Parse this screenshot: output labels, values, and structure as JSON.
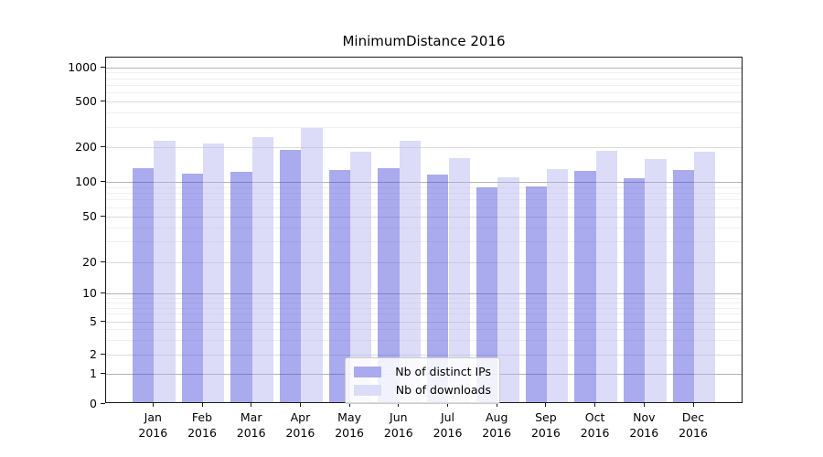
{
  "chart_data": {
    "type": "bar",
    "title": "MinimumDistance 2016",
    "categories": [
      "Jan 2016",
      "Feb 2016",
      "Mar 2016",
      "Apr 2016",
      "May 2016",
      "Jun 2016",
      "Jul 2016",
      "Aug 2016",
      "Sep 2016",
      "Oct 2016",
      "Nov 2016",
      "Dec 2016"
    ],
    "x_months": [
      "Jan",
      "Feb",
      "Mar",
      "Apr",
      "May",
      "Jun",
      "Jul",
      "Aug",
      "Sep",
      "Oct",
      "Nov",
      "Dec"
    ],
    "x_year": "2016",
    "series": [
      {
        "name": "Nb of distinct IPs",
        "color": "#aaaaee",
        "values": [
          128,
          115,
          119,
          185,
          124,
          129,
          112,
          87,
          88,
          121,
          104,
          123
        ]
      },
      {
        "name": "Nb of downloads",
        "color": "#dcdcf8",
        "values": [
          221,
          210,
          240,
          287,
          177,
          221,
          158,
          106,
          125,
          182,
          154,
          178
        ]
      }
    ],
    "y_scale": "symlog",
    "y_ticks": [
      0,
      1,
      2,
      5,
      10,
      20,
      50,
      100,
      200,
      500,
      1000
    ],
    "ylim": [
      0,
      1200
    ],
    "xlabel": "",
    "ylabel": "",
    "grid": true,
    "legend_position": "lower center",
    "colors": {
      "bar_dark": "#aaaaee",
      "bar_light": "#dcdcf8",
      "grid_decade": "#b3b3b3",
      "grid_major": "#dcdcdc",
      "grid_minor": "#f0f0f0",
      "spine": "#1a1a1a"
    }
  }
}
